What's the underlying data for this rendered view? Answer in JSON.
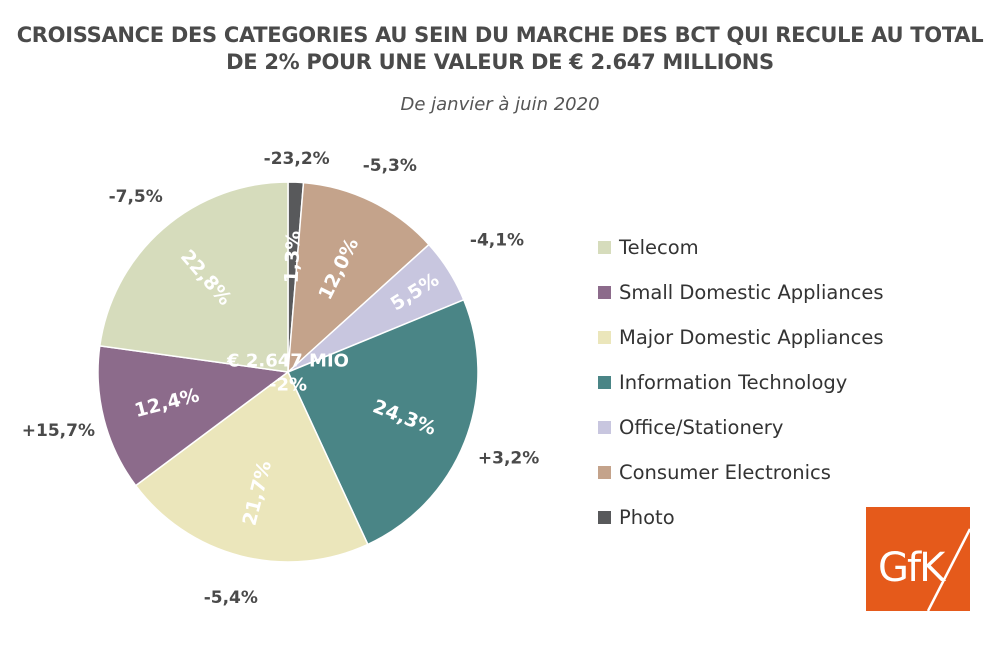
{
  "title_line1": "CROISSANCE DES CATEGORIES AU SEIN DU MARCHE DES BCT QUI RECULE AU TOTAL",
  "title_line2": "DE 2% POUR UNE VALEUR DE € 2.647 MILLIONS",
  "subtitle": "De janvier à juin 2020",
  "logo": {
    "text": "GfK",
    "color": "#e55a1b"
  },
  "chart_data": {
    "type": "pie",
    "title": "CROISSANCE DES CATEGORIES AU SEIN DU MARCHE DES BCT QUI RECULE AU TOTAL DE 2% POUR UNE VALEUR DE € 2.647 MILLIONS",
    "subtitle": "De janvier à juin 2020",
    "center_label": "€ 2.647 MIO",
    "center_growth": "-2%",
    "slices": [
      {
        "category": "Photo",
        "share": 1.3,
        "share_label": "1,3%",
        "growth_label": "-23,2%",
        "color": "#58595b"
      },
      {
        "category": "Consumer Electronics",
        "share": 12.0,
        "share_label": "12,0%",
        "growth_label": "-5,3%",
        "color": "#c4a38b"
      },
      {
        "category": "Office/Stationery",
        "share": 5.5,
        "share_label": "5,5%",
        "growth_label": "-4,1%",
        "color": "#c8c6df"
      },
      {
        "category": "Information Technology",
        "share": 24.3,
        "share_label": "24,3%",
        "growth_label": "+3,2%",
        "color": "#4a8586"
      },
      {
        "category": "Major Domestic Appliances",
        "share": 21.7,
        "share_label": "21,7%",
        "growth_label": "-5,4%",
        "color": "#ebe6bb"
      },
      {
        "category": "Small Domestic Appliances",
        "share": 12.4,
        "share_label": "12,4%",
        "growth_label": "+15,7%",
        "color": "#8c6b8b"
      },
      {
        "category": "Telecom",
        "share": 22.8,
        "share_label": "22,8%",
        "growth_label": "-7,5%",
        "color": "#d6dcbc"
      }
    ],
    "legend": [
      {
        "label": "Telecom",
        "color": "#d6dcbc"
      },
      {
        "label": "Small Domestic Appliances",
        "color": "#8c6b8b"
      },
      {
        "label": "Major Domestic Appliances",
        "color": "#ebe6bb"
      },
      {
        "label": "Information Technology",
        "color": "#4a8586"
      },
      {
        "label": "Office/Stationery",
        "color": "#c8c6df"
      },
      {
        "label": "Consumer Electronics",
        "color": "#c4a38b"
      },
      {
        "label": "Photo",
        "color": "#58595b"
      }
    ]
  }
}
